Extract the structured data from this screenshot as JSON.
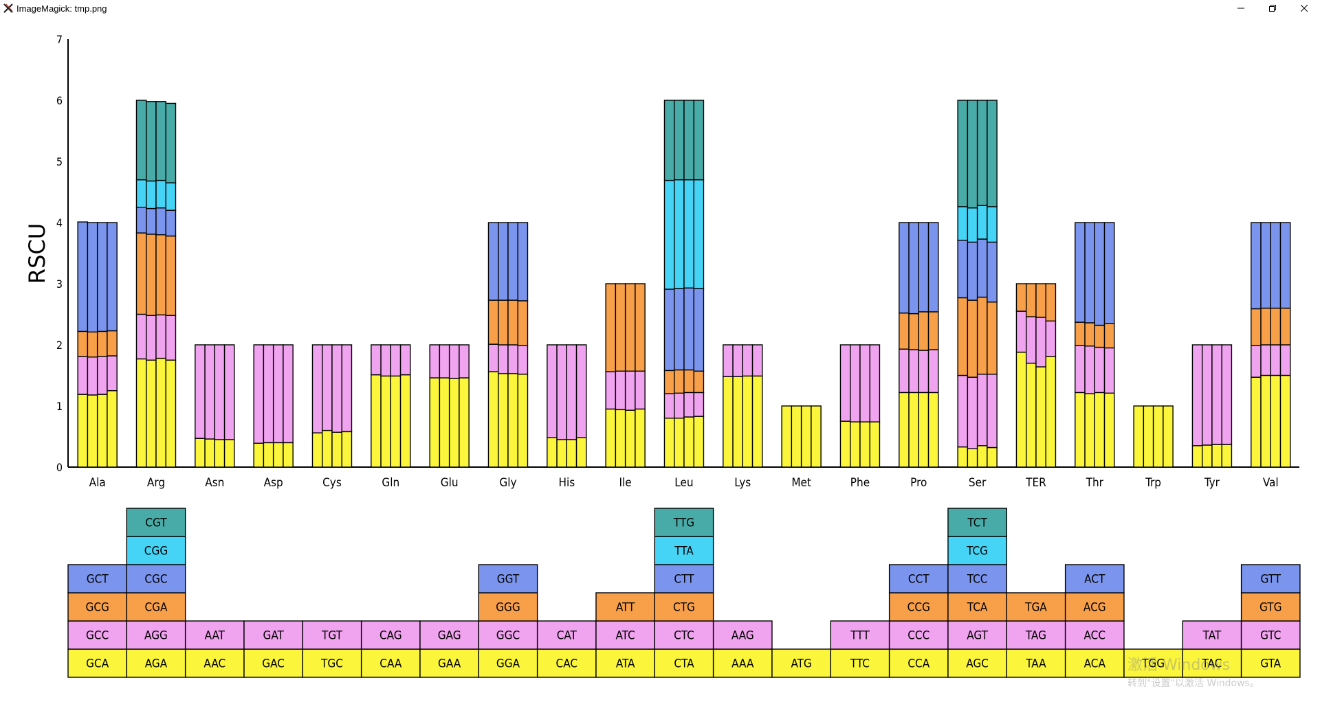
{
  "window": {
    "title": "ImageMagick: tmp.png",
    "icon": "imagemagick-x-icon",
    "controls": [
      "minimize-icon",
      "restore-icon",
      "close-icon"
    ]
  },
  "watermark": {
    "line1": "激活 Windows",
    "line2": "转到\"设置\"以激活 Windows。"
  },
  "colors": {
    "level1": "#fbf63b",
    "level2": "#f0a3ee",
    "level3": "#f8a049",
    "level4": "#7b95ee",
    "level5": "#45d4f5",
    "level6": "#48aba7",
    "outline": "#000000"
  },
  "chart_data": {
    "type": "bar",
    "stacked": true,
    "ylabel": "RSCU",
    "xlabel": "",
    "ylim": [
      0,
      7
    ],
    "yticks": [
      0,
      1,
      2,
      3,
      4,
      5,
      6,
      7
    ],
    "grid": false,
    "categories": [
      "Ala",
      "Arg",
      "Asn",
      "Asp",
      "Cys",
      "Gln",
      "Glu",
      "Gly",
      "His",
      "Ile",
      "Leu",
      "Lys",
      "Met",
      "Phe",
      "Pro",
      "Ser",
      "TER",
      "Thr",
      "Trp",
      "Tyr",
      "Val"
    ],
    "samples_per_category": 4,
    "values": {
      "Ala": [
        [
          1.19,
          0.62,
          0.41,
          1.79
        ],
        [
          1.18,
          0.62,
          0.41,
          1.79
        ],
        [
          1.19,
          0.62,
          0.41,
          1.78
        ],
        [
          1.25,
          0.57,
          0.41,
          1.77
        ]
      ],
      "Arg": [
        [
          1.77,
          0.73,
          1.33,
          0.42,
          0.45,
          1.3
        ],
        [
          1.75,
          0.73,
          1.33,
          0.42,
          0.45,
          1.3
        ],
        [
          1.78,
          0.71,
          1.31,
          0.44,
          0.45,
          1.29
        ],
        [
          1.75,
          0.73,
          1.3,
          0.42,
          0.45,
          1.3
        ]
      ],
      "Asn": [
        [
          0.47,
          1.53
        ],
        [
          0.46,
          1.54
        ],
        [
          0.45,
          1.55
        ],
        [
          0.45,
          1.55
        ]
      ],
      "Asp": [
        [
          0.39,
          1.61
        ],
        [
          0.4,
          1.6
        ],
        [
          0.4,
          1.6
        ],
        [
          0.4,
          1.6
        ]
      ],
      "Cys": [
        [
          0.56,
          1.44
        ],
        [
          0.6,
          1.4
        ],
        [
          0.57,
          1.43
        ],
        [
          0.58,
          1.42
        ]
      ],
      "Gln": [
        [
          1.51,
          0.49
        ],
        [
          1.49,
          0.51
        ],
        [
          1.49,
          0.51
        ],
        [
          1.51,
          0.49
        ]
      ],
      "Glu": [
        [
          1.46,
          0.54
        ],
        [
          1.46,
          0.54
        ],
        [
          1.45,
          0.55
        ],
        [
          1.46,
          0.54
        ]
      ],
      "Gly": [
        [
          1.56,
          0.45,
          0.72,
          1.27
        ],
        [
          1.53,
          0.47,
          0.73,
          1.27
        ],
        [
          1.53,
          0.47,
          0.73,
          1.27
        ],
        [
          1.52,
          0.47,
          0.73,
          1.28
        ]
      ],
      "His": [
        [
          0.48,
          1.52
        ],
        [
          0.45,
          1.55
        ],
        [
          0.45,
          1.55
        ],
        [
          0.48,
          1.52
        ]
      ],
      "Ile": [
        [
          0.95,
          0.61,
          1.44
        ],
        [
          0.94,
          0.63,
          1.43
        ],
        [
          0.93,
          0.64,
          1.43
        ],
        [
          0.95,
          0.62,
          1.43
        ]
      ],
      "Leu": [
        [
          0.8,
          0.4,
          0.38,
          1.33,
          1.78,
          1.31
        ],
        [
          0.8,
          0.41,
          0.38,
          1.33,
          1.78,
          1.3
        ],
        [
          0.82,
          0.4,
          0.37,
          1.34,
          1.77,
          1.3
        ],
        [
          0.83,
          0.39,
          0.35,
          1.35,
          1.78,
          1.3
        ]
      ],
      "Lys": [
        [
          1.48,
          0.52
        ],
        [
          1.48,
          0.52
        ],
        [
          1.49,
          0.51
        ],
        [
          1.49,
          0.51
        ]
      ],
      "Met": [
        [
          1.0
        ],
        [
          1.0
        ],
        [
          1.0
        ],
        [
          1.0
        ]
      ],
      "Phe": [
        [
          0.75,
          1.25
        ],
        [
          0.74,
          1.26
        ],
        [
          0.74,
          1.26
        ],
        [
          0.74,
          1.26
        ]
      ],
      "Pro": [
        [
          1.22,
          0.71,
          0.59,
          1.48
        ],
        [
          1.22,
          0.7,
          0.59,
          1.49
        ],
        [
          1.22,
          0.69,
          0.63,
          1.46
        ],
        [
          1.22,
          0.7,
          0.62,
          1.46
        ]
      ],
      "Ser": [
        [
          0.33,
          1.17,
          1.27,
          0.94,
          0.55,
          1.74
        ],
        [
          0.3,
          1.17,
          1.26,
          0.95,
          0.56,
          1.76
        ],
        [
          0.35,
          1.17,
          1.26,
          0.95,
          0.55,
          1.72
        ],
        [
          0.32,
          1.2,
          1.18,
          0.98,
          0.58,
          1.74
        ]
      ],
      "TER": [
        [
          1.88,
          0.67,
          0.45
        ],
        [
          1.7,
          0.76,
          0.54
        ],
        [
          1.64,
          0.81,
          0.55
        ],
        [
          1.81,
          0.58,
          0.61
        ]
      ],
      "Thr": [
        [
          1.22,
          0.77,
          0.38,
          1.63
        ],
        [
          1.2,
          0.78,
          0.38,
          1.64
        ],
        [
          1.22,
          0.74,
          0.36,
          1.68
        ],
        [
          1.21,
          0.74,
          0.4,
          1.65
        ]
      ],
      "Trp": [
        [
          1.0
        ],
        [
          1.0
        ],
        [
          1.0
        ],
        [
          1.0
        ]
      ],
      "Tyr": [
        [
          0.35,
          1.65
        ],
        [
          0.36,
          1.64
        ],
        [
          0.37,
          1.63
        ],
        [
          0.37,
          1.63
        ]
      ],
      "Val": [
        [
          1.47,
          0.52,
          0.6,
          1.41
        ],
        [
          1.5,
          0.5,
          0.6,
          1.4
        ],
        [
          1.5,
          0.5,
          0.6,
          1.4
        ],
        [
          1.5,
          0.5,
          0.6,
          1.4
        ]
      ]
    },
    "codon_table": {
      "Ala": [
        "GCA",
        "GCC",
        "GCG",
        "GCT"
      ],
      "Arg": [
        "AGA",
        "AGG",
        "CGA",
        "CGC",
        "CGG",
        "CGT"
      ],
      "Asn": [
        "AAC",
        "AAT"
      ],
      "Asp": [
        "GAC",
        "GAT"
      ],
      "Cys": [
        "TGC",
        "TGT"
      ],
      "Gln": [
        "CAA",
        "CAG"
      ],
      "Glu": [
        "GAA",
        "GAG"
      ],
      "Gly": [
        "GGA",
        "GGC",
        "GGG",
        "GGT"
      ],
      "His": [
        "CAC",
        "CAT"
      ],
      "Ile": [
        "ATA",
        "ATC",
        "ATT"
      ],
      "Leu": [
        "CTA",
        "CTC",
        "CTG",
        "CTT",
        "TTA",
        "TTG"
      ],
      "Lys": [
        "AAA",
        "AAG"
      ],
      "Met": [
        "ATG"
      ],
      "Phe": [
        "TTC",
        "TTT"
      ],
      "Pro": [
        "CCA",
        "CCC",
        "CCG",
        "CCT"
      ],
      "Ser": [
        "AGC",
        "AGT",
        "TCA",
        "TCC",
        "TCG",
        "TCT"
      ],
      "TER": [
        "TAA",
        "TAG",
        "TGA"
      ],
      "Thr": [
        "ACA",
        "ACC",
        "ACG",
        "ACT"
      ],
      "Trp": [
        "TGG"
      ],
      "Tyr": [
        "TAC",
        "TAT"
      ],
      "Val": [
        "GTA",
        "GTC",
        "GTG",
        "GTT"
      ]
    }
  }
}
